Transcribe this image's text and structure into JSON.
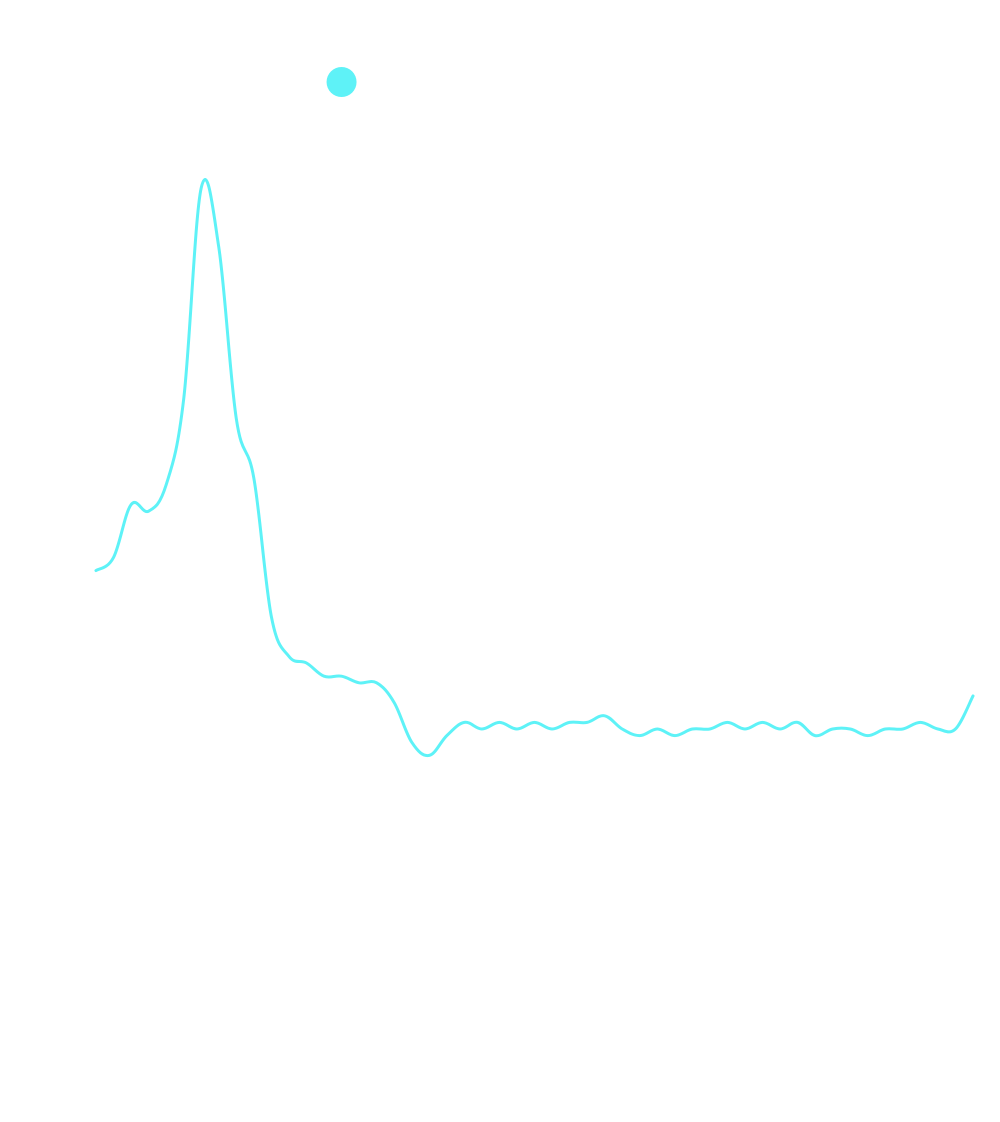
{
  "chart_data": {
    "type": "line",
    "title": "",
    "xlabel": "",
    "ylabel": "",
    "grid": false,
    "line_color": "#5ef2f7",
    "marker_color": "#5ef2f7",
    "x": [
      0,
      1,
      2,
      3,
      4,
      5,
      6,
      7,
      8,
      9,
      10,
      11,
      12,
      13,
      14,
      15,
      16,
      17,
      18,
      19,
      20,
      21,
      22,
      23,
      24,
      25,
      26,
      27,
      28,
      29,
      30,
      31,
      32,
      33,
      34,
      35,
      36,
      37,
      38,
      39,
      40,
      41,
      42,
      43,
      44,
      45,
      46,
      47,
      48,
      49,
      50
    ],
    "values": [
      0.34,
      0.36,
      0.44,
      0.43,
      0.47,
      0.6,
      0.92,
      0.83,
      0.57,
      0.48,
      0.27,
      0.21,
      0.2,
      0.18,
      0.18,
      0.17,
      0.17,
      0.14,
      0.08,
      0.06,
      0.09,
      0.11,
      0.1,
      0.11,
      0.1,
      0.11,
      0.1,
      0.11,
      0.11,
      0.12,
      0.1,
      0.09,
      0.1,
      0.09,
      0.1,
      0.1,
      0.11,
      0.1,
      0.11,
      0.1,
      0.11,
      0.09,
      0.1,
      0.1,
      0.09,
      0.1,
      0.1,
      0.11,
      0.1,
      0.1,
      0.15
    ],
    "xlim": [
      0,
      50
    ],
    "ylim": [
      0,
      1
    ],
    "marker": {
      "x": 14.0,
      "y": 1.0
    }
  }
}
